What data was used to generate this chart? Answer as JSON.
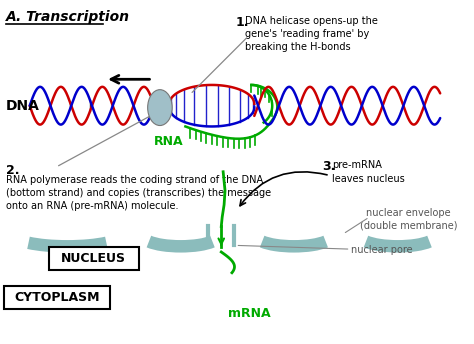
{
  "title": "A. Transcription",
  "bg_color": "#ffffff",
  "dna_red": "#cc0000",
  "dna_blue": "#0000cc",
  "dna_green": "#00aa00",
  "helicase_color": "#a0bfc8",
  "membrane_color": "#8bbcbc",
  "text_color": "#000000",
  "label1": "1.",
  "label1_text": "DNA helicase opens-up the\ngene's 'reading frame' by\nbreaking the H-bonds",
  "label2": "2.",
  "label2_text": "RNA polymerase reads the coding strand of the DNA\n(bottom strand) and copies (transcribes) the message\nonto an RNA (pre-mRNA) molecule.",
  "label3": "3.",
  "label3_text": "pre-mRNA\nleaves nucleus",
  "dna_label": "DNA",
  "rna_label": "RNA",
  "mrna_label": "mRNA",
  "nucleus_label": "NUCLEUS",
  "cytoplasm_label": "CYTOPLASM",
  "nuclear_envelope_label": "nuclear envelope\n(double membrane)",
  "nuclear_pore_label": "nuclear pore"
}
